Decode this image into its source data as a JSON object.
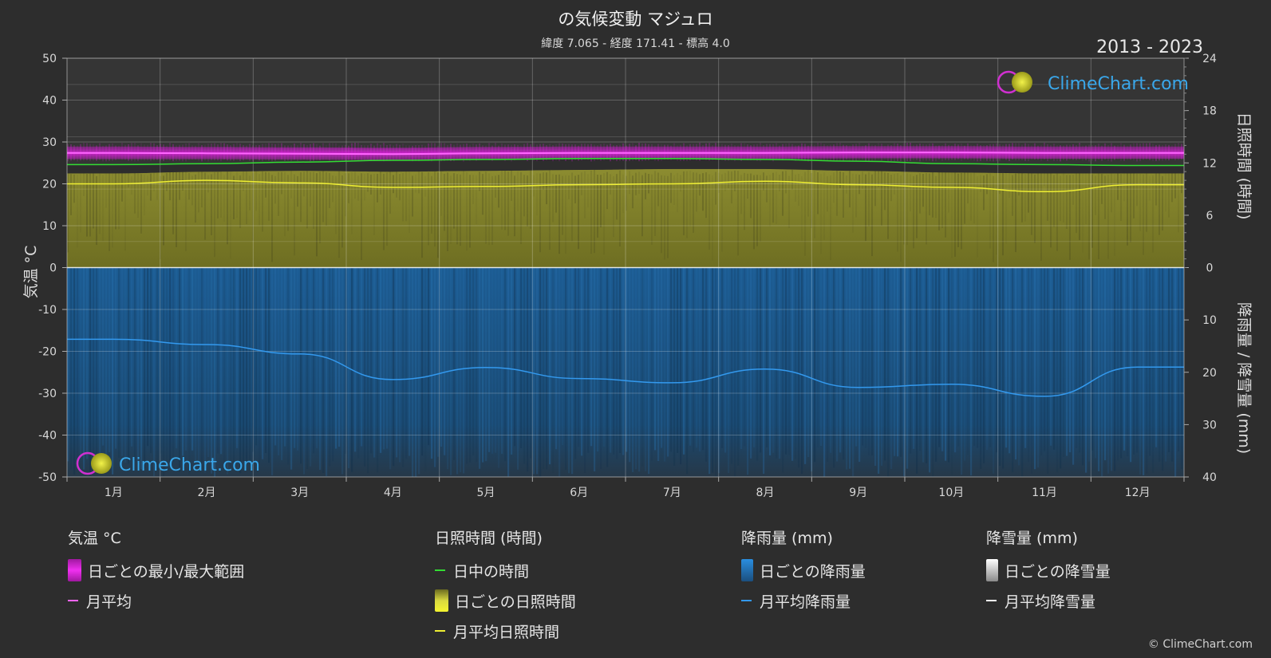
{
  "header": {
    "title": "の気候変動 マジュロ",
    "subtitle": "緯度 7.065 - 経度 171.41 - 標高 4.0",
    "years": "2013 - 2023",
    "copyright": "© ClimeChart.com"
  },
  "watermark": "ClimeChart.com",
  "legend": {
    "temp": {
      "title": "気温 °C",
      "range": "日ごとの最小/最大範囲",
      "avg": "月平均"
    },
    "sun": {
      "title": "日照時間 (時間)",
      "daylight": "日中の時間",
      "daily": "日ごとの日照時間",
      "avg": "月平均日照時間"
    },
    "rain": {
      "title": "降雨量 (mm)",
      "daily": "日ごとの降雨量",
      "avg": "月平均降雨量"
    },
    "snow": {
      "title": "降雪量 (mm)",
      "daily": "日ごとの降雪量",
      "avg": "月平均降雪量"
    }
  },
  "colors": {
    "temp_range": "#e020e0",
    "temp_avg": "#ff66ff",
    "daylight": "#33dd33",
    "sunshine_fill": "#8a8a2a",
    "sunshine_avg": "#eeee33",
    "rain_fill": "#1e5a8c",
    "rain_avg": "#3399ee",
    "snow": "#ffffff"
  },
  "chart_data": {
    "type": "area",
    "months": [
      "1月",
      "2月",
      "3月",
      "4月",
      "5月",
      "6月",
      "7月",
      "8月",
      "9月",
      "10月",
      "11月",
      "12月"
    ],
    "y_left": {
      "label": "気温 °C",
      "range": [
        -50,
        50
      ],
      "ticks": [
        "50",
        "40",
        "30",
        "20",
        "10",
        "0",
        "-10",
        "-20",
        "-30",
        "-40",
        "-50"
      ]
    },
    "y_right_top": {
      "label": "日照時間 (時間)",
      "range": [
        0,
        24
      ],
      "ticks": [
        "24",
        "18",
        "12",
        "6",
        "0"
      ]
    },
    "y_right_bottom": {
      "label": "降雨量 / 降雪量 (mm)",
      "range": [
        0,
        40
      ],
      "ticks": [
        "0",
        "10",
        "20",
        "30",
        "40"
      ]
    },
    "series": [
      {
        "name": "月平均",
        "unit": "°C",
        "values": [
          27.4,
          27.3,
          27.2,
          27.1,
          27.3,
          27.4,
          27.4,
          27.4,
          27.5,
          27.5,
          27.4,
          27.4
        ]
      },
      {
        "name": "日ごとの最小/最大範囲 (min)",
        "unit": "°C",
        "values": [
          25.9,
          25.9,
          25.8,
          25.7,
          25.9,
          26.0,
          26.0,
          26.0,
          26.1,
          26.1,
          26.0,
          26.0
        ]
      },
      {
        "name": "日ごとの最小/最大範囲 (max)",
        "unit": "°C",
        "values": [
          28.9,
          28.8,
          28.7,
          28.6,
          28.8,
          28.9,
          28.9,
          28.9,
          29.0,
          29.0,
          28.9,
          28.9
        ]
      },
      {
        "name": "日中の時間",
        "unit": "時間",
        "values": [
          11.8,
          11.9,
          12.1,
          12.3,
          12.4,
          12.5,
          12.5,
          12.4,
          12.2,
          11.9,
          11.8,
          11.7
        ]
      },
      {
        "name": "日ごとの日照時間",
        "unit": "時間",
        "values": [
          10.8,
          11.0,
          11.1,
          11.0,
          11.1,
          11.2,
          11.3,
          11.3,
          11.1,
          10.9,
          10.8,
          10.8
        ]
      },
      {
        "name": "月平均日照時間",
        "unit": "時間",
        "values": [
          9.6,
          10.0,
          9.7,
          9.2,
          9.3,
          9.5,
          9.6,
          9.9,
          9.5,
          9.2,
          8.7,
          9.5
        ]
      },
      {
        "name": "月平均降雨量",
        "unit": "mm",
        "values": [
          13.7,
          14.7,
          16.5,
          21.4,
          19.1,
          21.2,
          22.0,
          19.4,
          22.9,
          22.3,
          24.6,
          19.0
        ]
      },
      {
        "name": "月平均降雪量",
        "unit": "mm",
        "values": [
          0,
          0,
          0,
          0,
          0,
          0,
          0,
          0,
          0,
          0,
          0,
          0
        ]
      }
    ]
  }
}
